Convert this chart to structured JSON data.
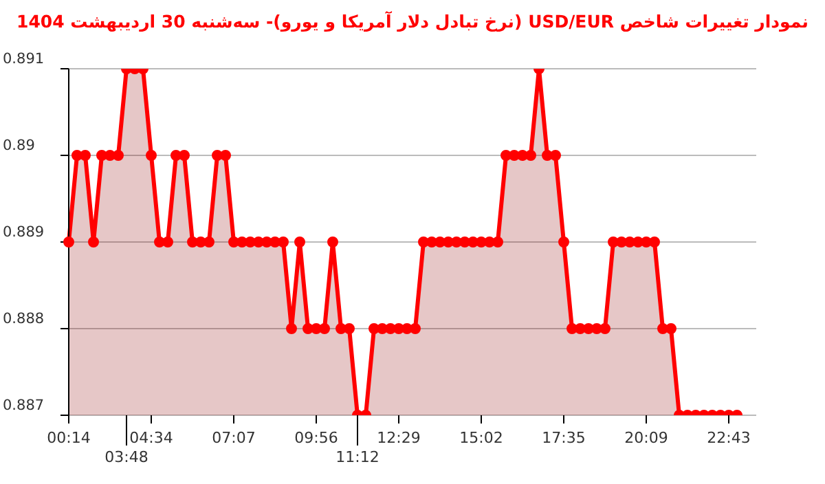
{
  "chart_data": {
    "type": "area",
    "title": "نمودار تغییرات شاخص USD/EUR (نرخ تبادل دلار آمریکا و یورو)- سه‌شنبه  30 اردیبهشت 1404",
    "categories": [
      "00:14",
      null,
      null,
      null,
      null,
      null,
      null,
      "03:48",
      null,
      null,
      "04:34",
      null,
      null,
      null,
      null,
      null,
      null,
      null,
      null,
      null,
      "07:07",
      null,
      null,
      null,
      null,
      null,
      null,
      null,
      null,
      null,
      "09:56",
      null,
      null,
      null,
      null,
      "11:12",
      null,
      null,
      null,
      null,
      "12:29",
      null,
      null,
      null,
      null,
      null,
      null,
      null,
      null,
      null,
      "15:02",
      null,
      null,
      null,
      null,
      null,
      null,
      null,
      null,
      null,
      "17:35",
      null,
      null,
      null,
      null,
      null,
      null,
      null,
      null,
      null,
      "20:09",
      null,
      null,
      null,
      null,
      null,
      null,
      null,
      null,
      null,
      "22:43",
      null
    ],
    "series": [
      {
        "color": "#ff0000",
        "values": [
          0.889,
          0.89,
          0.89,
          0.889,
          0.89,
          0.89,
          0.89,
          0.891,
          0.891,
          0.891,
          0.89,
          0.889,
          0.889,
          0.89,
          0.89,
          0.889,
          0.889,
          0.889,
          0.89,
          0.89,
          0.889,
          0.889,
          0.889,
          0.889,
          0.889,
          0.889,
          0.889,
          0.888,
          0.889,
          0.888,
          0.888,
          0.888,
          0.889,
          0.888,
          0.888,
          0.887,
          0.887,
          0.888,
          0.888,
          0.888,
          0.888,
          0.888,
          0.888,
          0.889,
          0.889,
          0.889,
          0.889,
          0.889,
          0.889,
          0.889,
          0.889,
          0.889,
          0.889,
          0.89,
          0.89,
          0.89,
          0.89,
          0.891,
          0.89,
          0.89,
          0.889,
          0.888,
          0.888,
          0.888,
          0.888,
          0.888,
          0.889,
          0.889,
          0.889,
          0.889,
          0.889,
          0.889,
          0.888,
          0.888,
          0.887,
          0.887,
          0.887,
          0.887,
          0.887,
          0.887,
          0.887,
          0.887
        ]
      }
    ],
    "ylim": [
      0.887,
      0.891
    ],
    "yticks": [
      0.887,
      0.888,
      0.889,
      0.89,
      0.891
    ],
    "grid": "y",
    "marker": "circle",
    "line_style": "solid"
  }
}
